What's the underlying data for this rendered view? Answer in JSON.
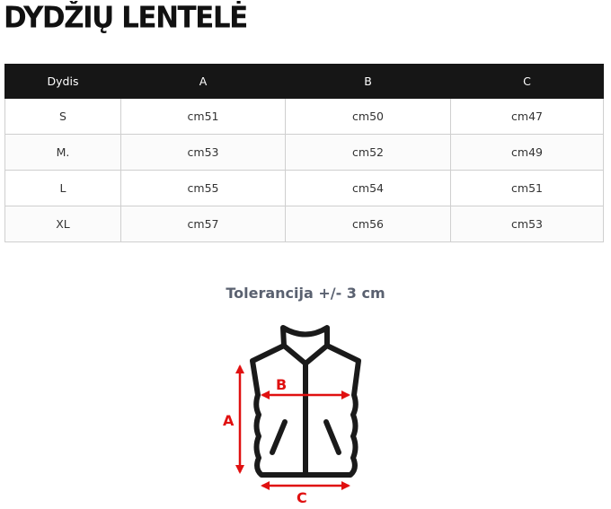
{
  "title": "DYDŽIŲ LENTELĖ",
  "table": {
    "headers": [
      "Dydis",
      "A",
      "B",
      "C"
    ],
    "rows": [
      [
        "S",
        "cm51",
        "cm50",
        "cm47"
      ],
      [
        "M.",
        "cm53",
        "cm52",
        "cm49"
      ],
      [
        "L",
        "cm55",
        "cm54",
        "cm51"
      ],
      [
        "XL",
        "cm57",
        "cm56",
        "cm53"
      ]
    ]
  },
  "tolerance": "Tolerancija +/- 3 cm",
  "diagram": {
    "labels": {
      "a": "A",
      "b": "B",
      "c": "C"
    },
    "icon": "vest-icon",
    "accent_color": "#e01010"
  }
}
